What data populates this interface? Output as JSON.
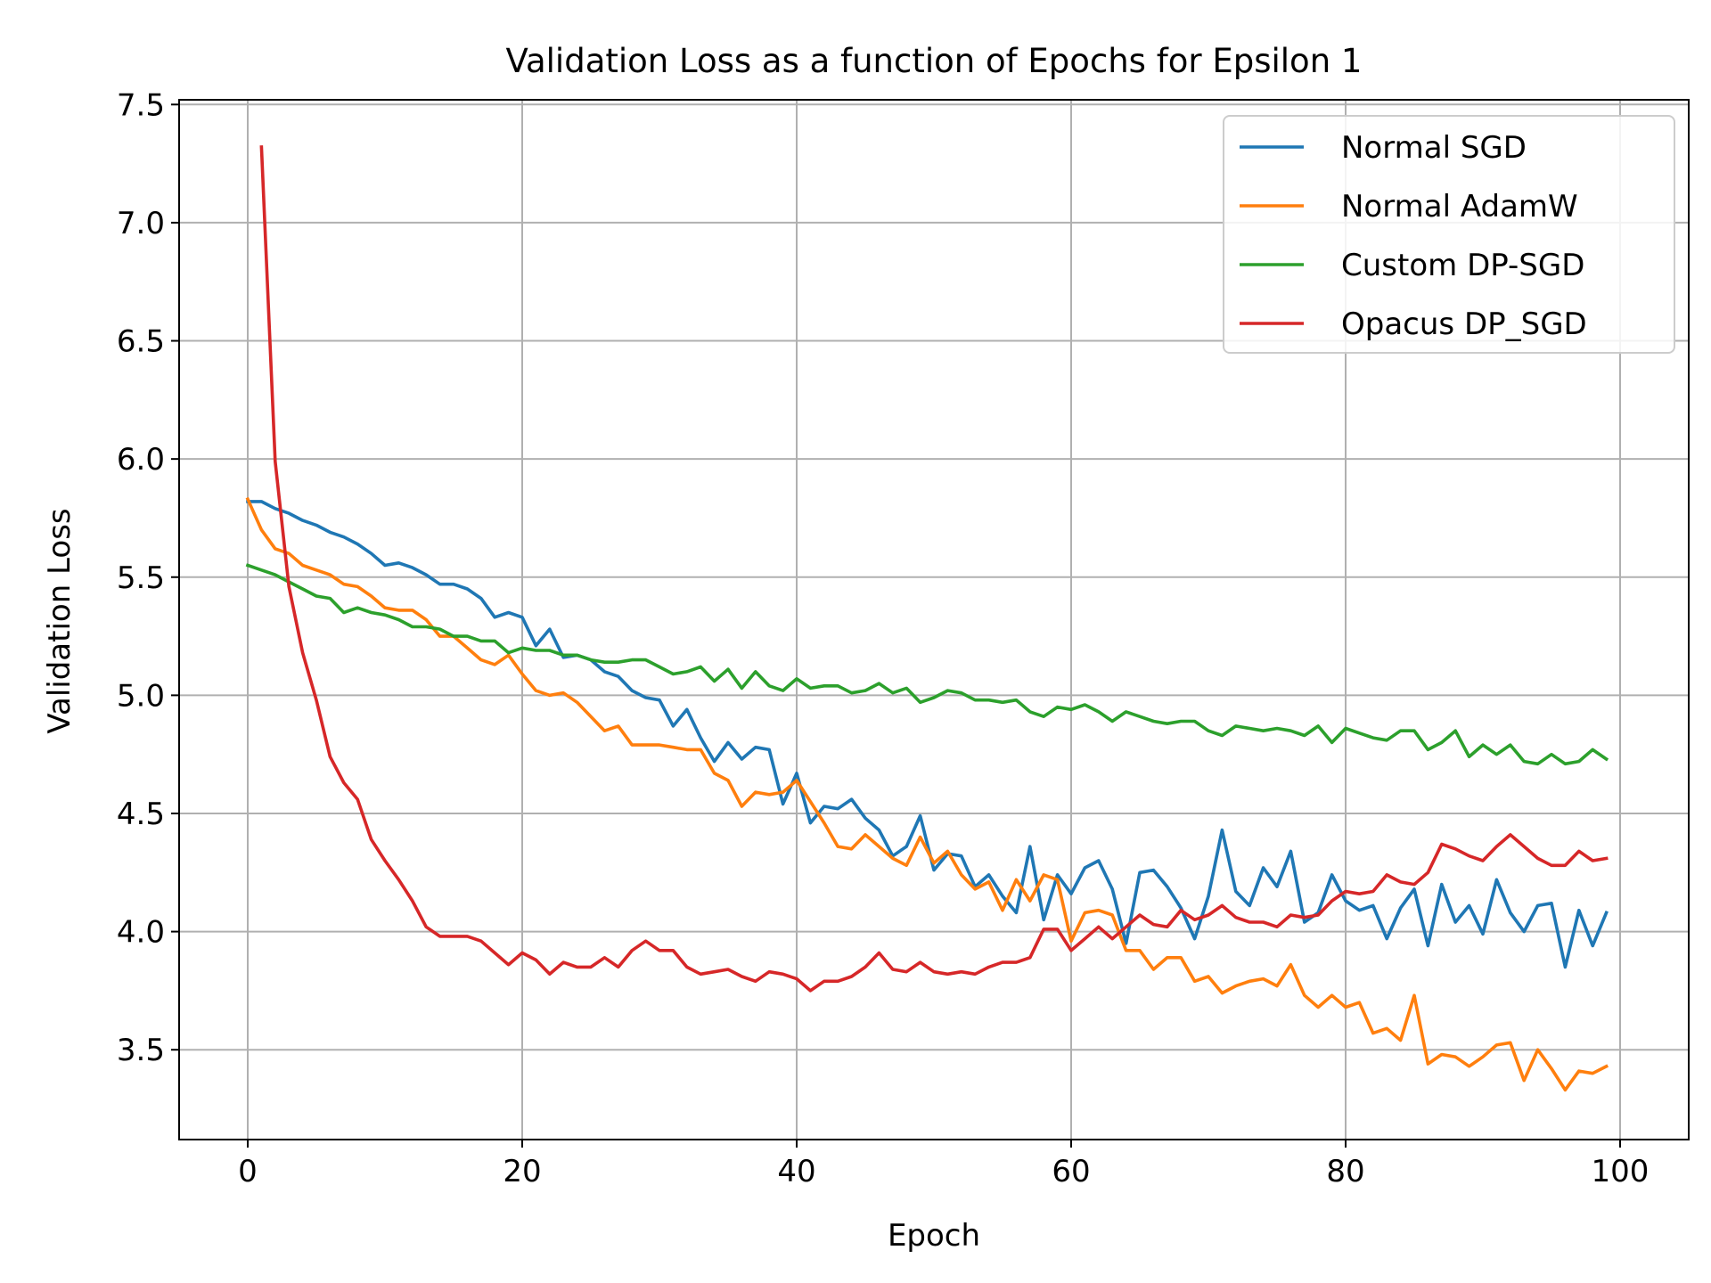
{
  "chart_data": {
    "type": "line",
    "title": "Validation Loss as a function of Epochs for Epsilon 1",
    "xlabel": "Epoch",
    "ylabel": "Validation Loss",
    "xlim": [
      -5,
      105
    ],
    "ylim": [
      3.12,
      7.52
    ],
    "xticks": [
      "0",
      "20",
      "40",
      "60",
      "80",
      "100"
    ],
    "yticks": [
      "3.5",
      "4.0",
      "4.5",
      "5.0",
      "5.5",
      "6.0",
      "6.5",
      "7.0",
      "7.5"
    ],
    "grid": true,
    "legend_position": "top-right",
    "series": [
      {
        "name": "Normal SGD",
        "color": "#1f77b4",
        "x_start": 0,
        "values": [
          5.82,
          5.82,
          5.79,
          5.77,
          5.74,
          5.72,
          5.69,
          5.67,
          5.64,
          5.6,
          5.55,
          5.56,
          5.54,
          5.51,
          5.47,
          5.47,
          5.45,
          5.41,
          5.33,
          5.35,
          5.33,
          5.21,
          5.28,
          5.16,
          5.17,
          5.15,
          5.1,
          5.08,
          5.02,
          4.99,
          4.98,
          4.87,
          4.94,
          4.82,
          4.72,
          4.8,
          4.73,
          4.78,
          4.77,
          4.54,
          4.67,
          4.46,
          4.53,
          4.52,
          4.56,
          4.48,
          4.43,
          4.32,
          4.36,
          4.49,
          4.26,
          4.33,
          4.32,
          4.19,
          4.24,
          4.15,
          4.08,
          4.36,
          4.05,
          4.24,
          4.16,
          4.27,
          4.3,
          4.18,
          3.95,
          4.25,
          4.26,
          4.19,
          4.1,
          3.97,
          4.15,
          4.43,
          4.17,
          4.11,
          4.27,
          4.19,
          4.34,
          4.04,
          4.08,
          4.24,
          4.13,
          4.09,
          4.11,
          3.97,
          4.1,
          4.18,
          3.94,
          4.2,
          4.04,
          4.11,
          3.99,
          4.22,
          4.08,
          4.0,
          4.11,
          4.12,
          3.85,
          4.09,
          3.94,
          4.08
        ]
      },
      {
        "name": "Normal AdamW",
        "color": "#ff7f0e",
        "x_start": 0,
        "values": [
          5.83,
          5.7,
          5.62,
          5.6,
          5.55,
          5.53,
          5.51,
          5.47,
          5.46,
          5.42,
          5.37,
          5.36,
          5.36,
          5.32,
          5.25,
          5.25,
          5.2,
          5.15,
          5.13,
          5.17,
          5.09,
          5.02,
          5.0,
          5.01,
          4.97,
          4.91,
          4.85,
          4.87,
          4.79,
          4.79,
          4.79,
          4.78,
          4.77,
          4.77,
          4.67,
          4.64,
          4.53,
          4.59,
          4.58,
          4.59,
          4.64,
          4.55,
          4.46,
          4.36,
          4.35,
          4.41,
          4.36,
          4.31,
          4.28,
          4.4,
          4.29,
          4.34,
          4.24,
          4.18,
          4.21,
          4.09,
          4.22,
          4.13,
          4.24,
          4.22,
          3.96,
          4.08,
          4.09,
          4.07,
          3.92,
          3.92,
          3.84,
          3.89,
          3.89,
          3.79,
          3.81,
          3.74,
          3.77,
          3.79,
          3.8,
          3.77,
          3.86,
          3.73,
          3.68,
          3.73,
          3.68,
          3.7,
          3.57,
          3.59,
          3.54,
          3.73,
          3.44,
          3.48,
          3.47,
          3.43,
          3.47,
          3.52,
          3.53,
          3.37,
          3.5,
          3.42,
          3.33,
          3.41,
          3.4,
          3.43
        ]
      },
      {
        "name": "Custom DP-SGD",
        "color": "#2ca02c",
        "x_start": 0,
        "values": [
          5.55,
          5.53,
          5.51,
          5.48,
          5.45,
          5.42,
          5.41,
          5.35,
          5.37,
          5.35,
          5.34,
          5.32,
          5.29,
          5.29,
          5.28,
          5.25,
          5.25,
          5.23,
          5.23,
          5.18,
          5.2,
          5.19,
          5.19,
          5.17,
          5.17,
          5.15,
          5.14,
          5.14,
          5.15,
          5.15,
          5.12,
          5.09,
          5.1,
          5.12,
          5.06,
          5.11,
          5.03,
          5.1,
          5.04,
          5.02,
          5.07,
          5.03,
          5.04,
          5.04,
          5.01,
          5.02,
          5.05,
          5.01,
          5.03,
          4.97,
          4.99,
          5.02,
          5.01,
          4.98,
          4.98,
          4.97,
          4.98,
          4.93,
          4.91,
          4.95,
          4.94,
          4.96,
          4.93,
          4.89,
          4.93,
          4.91,
          4.89,
          4.88,
          4.89,
          4.89,
          4.85,
          4.83,
          4.87,
          4.86,
          4.85,
          4.86,
          4.85,
          4.83,
          4.87,
          4.8,
          4.86,
          4.84,
          4.82,
          4.81,
          4.85,
          4.85,
          4.77,
          4.8,
          4.85,
          4.74,
          4.79,
          4.75,
          4.79,
          4.72,
          4.71,
          4.75,
          4.71,
          4.72,
          4.77,
          4.73
        ]
      },
      {
        "name": "Opacus DP_SGD",
        "color": "#d62728",
        "x_start": 1,
        "values": [
          7.32,
          5.99,
          5.46,
          5.18,
          4.98,
          4.74,
          4.63,
          4.56,
          4.39,
          4.3,
          4.22,
          4.13,
          4.02,
          3.98,
          3.98,
          3.98,
          3.96,
          3.91,
          3.86,
          3.91,
          3.88,
          3.82,
          3.87,
          3.85,
          3.85,
          3.89,
          3.85,
          3.92,
          3.96,
          3.92,
          3.92,
          3.85,
          3.82,
          3.83,
          3.84,
          3.81,
          3.79,
          3.83,
          3.82,
          3.8,
          3.75,
          3.79,
          3.79,
          3.81,
          3.85,
          3.91,
          3.84,
          3.83,
          3.87,
          3.83,
          3.82,
          3.83,
          3.82,
          3.85,
          3.87,
          3.87,
          3.89,
          4.01,
          4.01,
          3.92,
          3.97,
          4.02,
          3.97,
          4.02,
          4.07,
          4.03,
          4.02,
          4.09,
          4.05,
          4.07,
          4.11,
          4.06,
          4.04,
          4.04,
          4.02,
          4.07,
          4.06,
          4.07,
          4.13,
          4.17,
          4.16,
          4.17,
          4.24,
          4.21,
          4.2,
          4.25,
          4.37,
          4.35,
          4.32,
          4.3,
          4.36,
          4.41,
          4.36,
          4.31,
          4.28,
          4.28,
          4.34,
          4.3,
          4.31
        ]
      }
    ]
  }
}
